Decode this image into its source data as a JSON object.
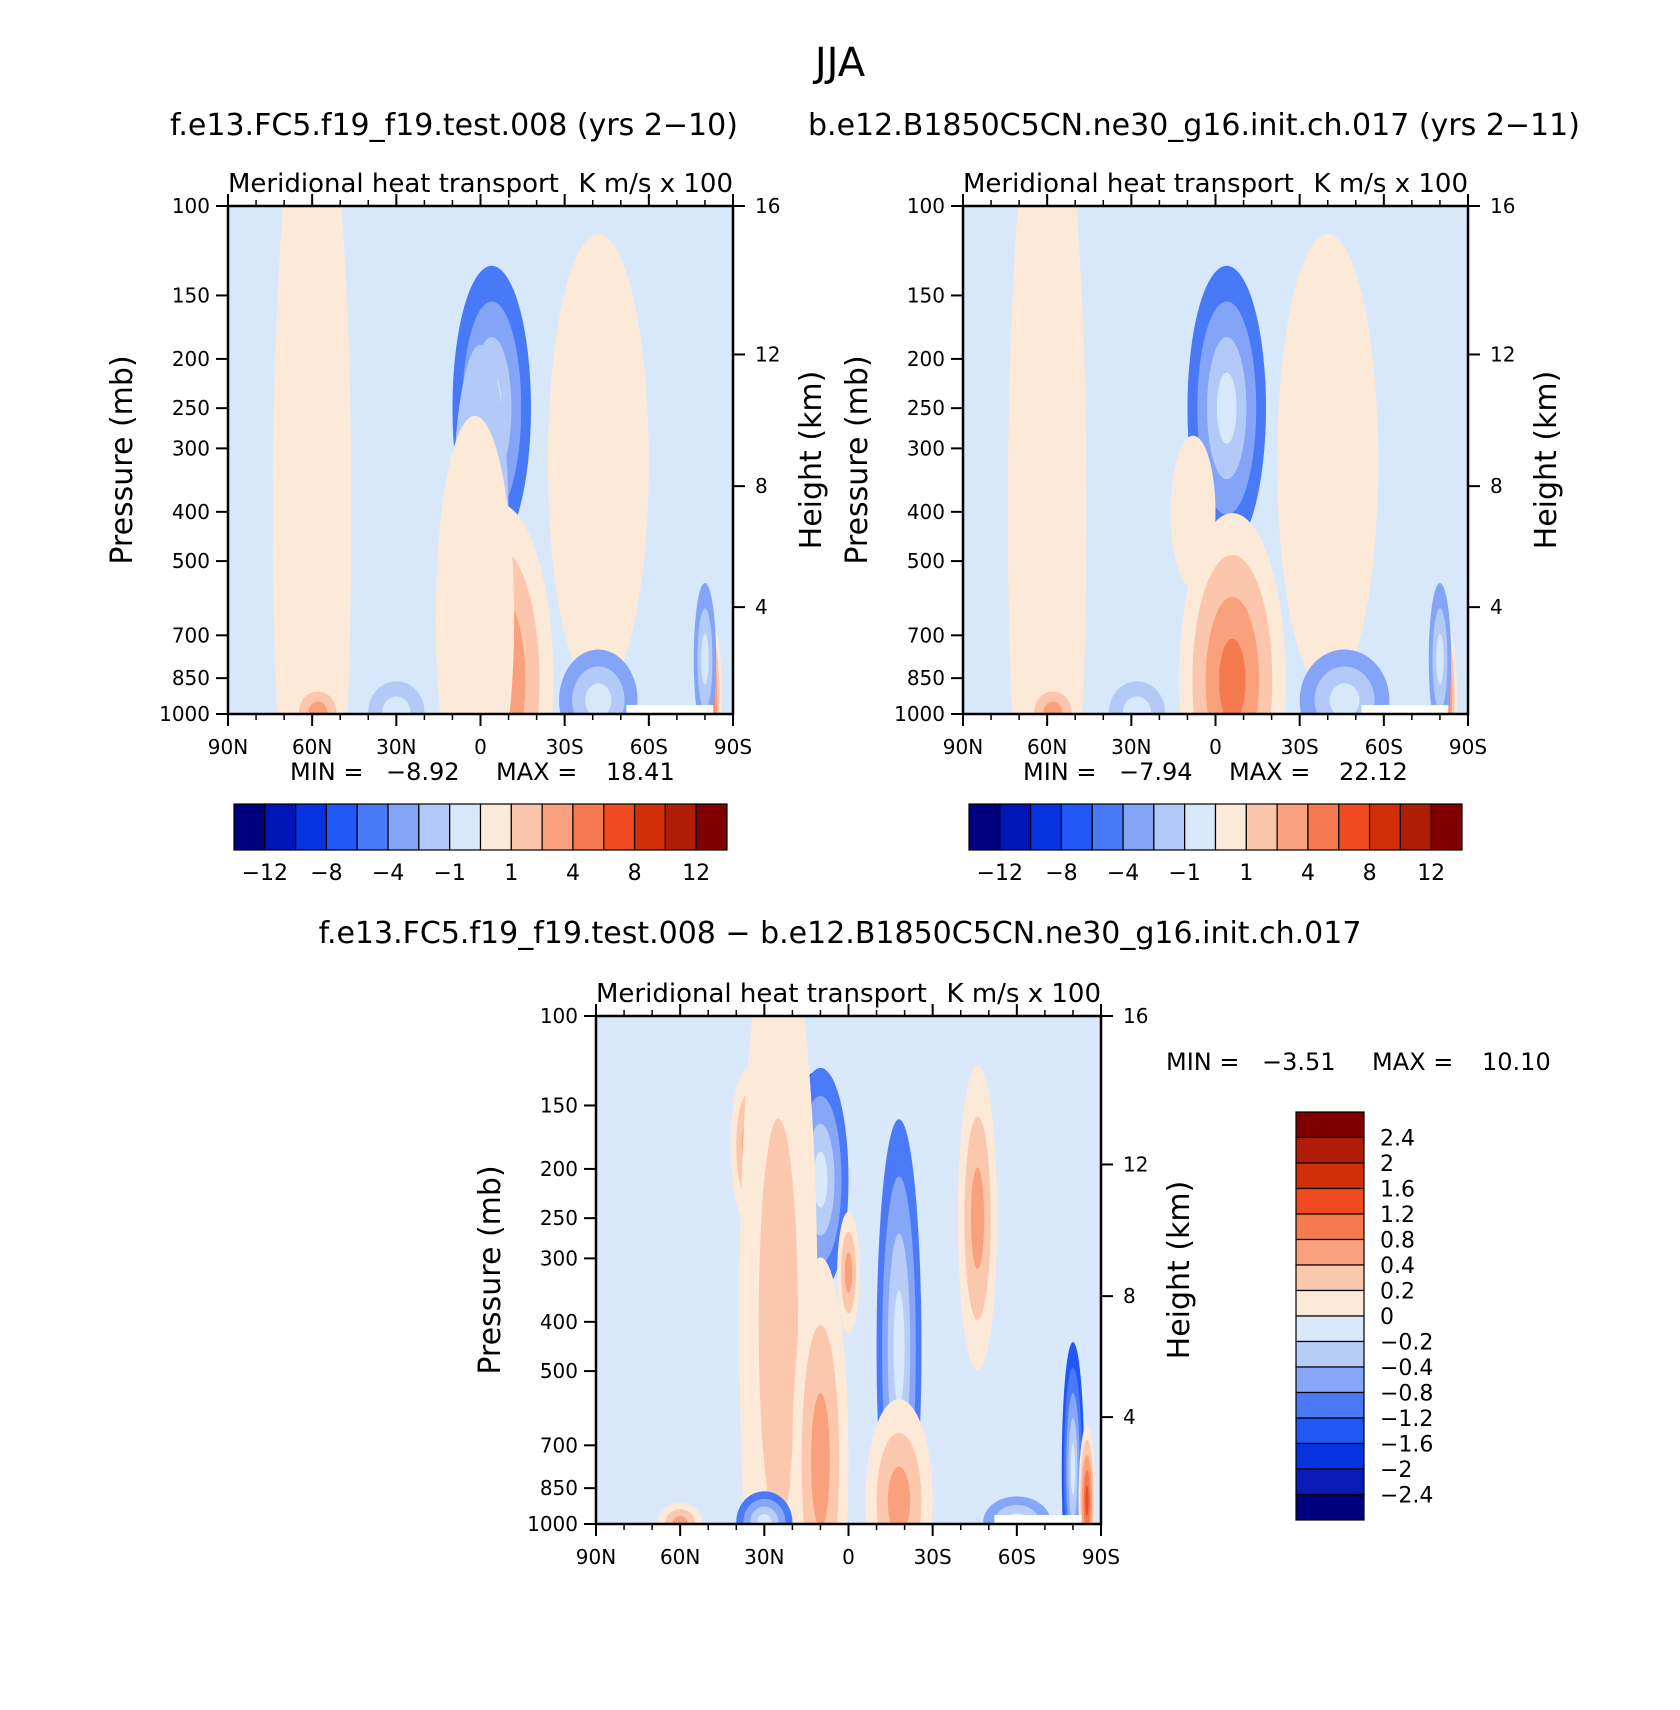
{
  "main_title": "JJA",
  "left_title": "f.e13.FC5.f19_f19.test.008 (yrs 2−10)",
  "right_title": "b.e12.B1850C5CN.ne30_g16.init.ch.017 (yrs 2−11)",
  "diff_title": "f.e13.FC5.f19_f19.test.008 − b.e12.B1850C5CN.ne30_g16.init.ch.017",
  "shared_colors": {
    "main_scale": [
      "#00007f",
      "#0015b8",
      "#0533e0",
      "#2157f7",
      "#4879f7",
      "#84a5f7",
      "#b3caf8",
      "#d8e8fb",
      "#fde9d7",
      "#fbc6ac",
      "#f9a07c",
      "#f67a50",
      "#f04a20",
      "#d22e07",
      "#b01d07",
      "#800000"
    ],
    "diff_scale": [
      "#00007f",
      "#0a1bb5",
      "#0533e0",
      "#2157f7",
      "#4a7af7",
      "#86a7f7",
      "#b7cdf8",
      "#d9e8fb",
      "#fde9d7",
      "#fbc7ad",
      "#f9a07c",
      "#f67a50",
      "#f04a20",
      "#d22e07",
      "#b01d07",
      "#800000"
    ]
  },
  "chart_data": [
    {
      "type": "heatmap",
      "name": "panel-control-fc5",
      "title": "Meridional heat transport",
      "units_label": "K m/s x 100",
      "ylabel": "Pressure (mb)",
      "ylabel_right": "Height (km)",
      "xticks": [
        "90N",
        "60N",
        "30N",
        "0",
        "30S",
        "60S",
        "90S"
      ],
      "xlim": [
        90,
        -90
      ],
      "yticks": [
        100,
        150,
        200,
        250,
        300,
        400,
        500,
        700,
        850,
        1000
      ],
      "ylim": [
        1000,
        100
      ],
      "y_scale": "log",
      "yticks_right": [
        16,
        12,
        8,
        4
      ],
      "min_label": "MIN =",
      "min_value": "−8.92",
      "max_label": "MAX =",
      "max_value": "18.41",
      "colorbar_labels": [
        "−12",
        "−8",
        "−4",
        "−1",
        "1",
        "4",
        "8",
        "12"
      ],
      "features": [
        {
          "lat": -2,
          "p": 200,
          "value": -12,
          "rx": 8,
          "rz": 0.12
        },
        {
          "lat": -4,
          "p": 250,
          "value": -5,
          "rx": 14,
          "rz": 0.28
        },
        {
          "lat": 0,
          "p": 420,
          "value": -2,
          "rx": 10,
          "rz": 0.35
        },
        {
          "lat": -40,
          "p": 230,
          "value": 2,
          "rx": 13,
          "rz": 0.22
        },
        {
          "lat": -42,
          "p": 320,
          "value": 0.8,
          "rx": 18,
          "rz": 0.45
        },
        {
          "lat": 60,
          "p": 400,
          "value": 0.6,
          "rx": 14,
          "rz": 0.9
        },
        {
          "lat": -8,
          "p": 980,
          "value": 16,
          "rx": 9,
          "rz": 0.08
        },
        {
          "lat": -8,
          "p": 930,
          "value": 11,
          "rx": 14,
          "rz": 0.16
        },
        {
          "lat": -6,
          "p": 860,
          "value": 5,
          "rx": 20,
          "rz": 0.35
        },
        {
          "lat": 2,
          "p": 650,
          "value": 1,
          "rx": 14,
          "rz": 0.4
        },
        {
          "lat": 58,
          "p": 990,
          "value": 3,
          "rx": 10,
          "rz": 0.06
        },
        {
          "lat": 30,
          "p": 990,
          "value": -2,
          "rx": 10,
          "rz": 0.06
        },
        {
          "lat": -42,
          "p": 940,
          "value": -4,
          "rx": 14,
          "rz": 0.1
        },
        {
          "lat": -82,
          "p": 920,
          "value": 8,
          "rx": 4,
          "rz": 0.15
        },
        {
          "lat": -80,
          "p": 780,
          "value": -3,
          "rx": 4,
          "rz": 0.15
        }
      ]
    },
    {
      "type": "heatmap",
      "name": "panel-control-b1850",
      "title": "Meridional heat transport",
      "units_label": "K m/s x 100",
      "ylabel": "Pressure (mb)",
      "ylabel_right": "Height (km)",
      "xticks": [
        "90N",
        "60N",
        "30N",
        "0",
        "30S",
        "60S",
        "90S"
      ],
      "xlim": [
        90,
        -90
      ],
      "yticks": [
        100,
        150,
        200,
        250,
        300,
        400,
        500,
        700,
        850,
        1000
      ],
      "ylim": [
        1000,
        100
      ],
      "y_scale": "log",
      "yticks_right": [
        16,
        12,
        8,
        4
      ],
      "min_label": "MIN =",
      "min_value": "−7.94",
      "max_label": "MAX =",
      "max_value": "22.12",
      "colorbar_labels": [
        "−12",
        "−8",
        "−4",
        "−1",
        "1",
        "4",
        "8",
        "12"
      ],
      "features": [
        {
          "lat": -3,
          "p": 210,
          "value": -11,
          "rx": 8,
          "rz": 0.14
        },
        {
          "lat": -4,
          "p": 250,
          "value": -5,
          "rx": 14,
          "rz": 0.28
        },
        {
          "lat": -38,
          "p": 210,
          "value": 2,
          "rx": 10,
          "rz": 0.15
        },
        {
          "lat": -40,
          "p": 320,
          "value": 0.8,
          "rx": 18,
          "rz": 0.45
        },
        {
          "lat": 60,
          "p": 400,
          "value": 0.6,
          "rx": 14,
          "rz": 0.9
        },
        {
          "lat": 8,
          "p": 400,
          "value": 0.5,
          "rx": 8,
          "rz": 0.15
        },
        {
          "lat": -8,
          "p": 985,
          "value": 18,
          "rx": 8,
          "rz": 0.07
        },
        {
          "lat": -8,
          "p": 930,
          "value": 11,
          "rx": 13,
          "rz": 0.16
        },
        {
          "lat": -6,
          "p": 860,
          "value": 5,
          "rx": 19,
          "rz": 0.33
        },
        {
          "lat": 58,
          "p": 990,
          "value": 3,
          "rx": 10,
          "rz": 0.06
        },
        {
          "lat": 28,
          "p": 990,
          "value": -2,
          "rx": 10,
          "rz": 0.06
        },
        {
          "lat": -46,
          "p": 940,
          "value": -3,
          "rx": 16,
          "rz": 0.1
        },
        {
          "lat": -82,
          "p": 920,
          "value": 7,
          "rx": 4,
          "rz": 0.15
        },
        {
          "lat": -80,
          "p": 780,
          "value": -3,
          "rx": 4,
          "rz": 0.15
        }
      ]
    },
    {
      "type": "heatmap",
      "name": "panel-difference",
      "title": "Meridional heat transport",
      "units_label": "K m/s x 100",
      "ylabel": "Pressure (mb)",
      "ylabel_right": "Height (km)",
      "xticks": [
        "90N",
        "60N",
        "30N",
        "0",
        "30S",
        "60S",
        "90S"
      ],
      "xlim": [
        90,
        -90
      ],
      "yticks": [
        100,
        150,
        200,
        250,
        300,
        400,
        500,
        700,
        850,
        1000
      ],
      "ylim": [
        1000,
        100
      ],
      "y_scale": "log",
      "yticks_right": [
        16,
        12,
        8,
        4
      ],
      "min_label": "MIN =",
      "min_value": "−3.51",
      "max_label": "MAX =",
      "max_value": "10.10",
      "colorbar_labels": [
        "2.4",
        "2",
        "1.6",
        "1.2",
        "0.8",
        "0.4",
        "0.2",
        "0",
        "−0.2",
        "−0.4",
        "−0.8",
        "−1.2",
        "−1.6",
        "−2",
        "−2.4"
      ],
      "features": [
        {
          "lat": 12,
          "p": 170,
          "value": -2.2,
          "rx": 6,
          "rz": 0.12
        },
        {
          "lat": 10,
          "p": 210,
          "value": -1,
          "rx": 10,
          "rz": 0.22
        },
        {
          "lat": -18,
          "p": 450,
          "value": -0.9,
          "rx": 8,
          "rz": 0.45
        },
        {
          "lat": 36,
          "p": 180,
          "value": 0.6,
          "rx": 6,
          "rz": 0.15
        },
        {
          "lat": -46,
          "p": 250,
          "value": 0.6,
          "rx": 7,
          "rz": 0.3
        },
        {
          "lat": 0,
          "p": 320,
          "value": 0.5,
          "rx": 4,
          "rz": 0.12
        },
        {
          "lat": 25,
          "p": 400,
          "value": 0.25,
          "rx": 14,
          "rz": 0.8
        },
        {
          "lat": 15,
          "p": 920,
          "value": 1.4,
          "rx": 6,
          "rz": 0.2
        },
        {
          "lat": 10,
          "p": 750,
          "value": 0.6,
          "rx": 10,
          "rz": 0.4
        },
        {
          "lat": -20,
          "p": 960,
          "value": 1.8,
          "rx": 8,
          "rz": 0.1
        },
        {
          "lat": -18,
          "p": 900,
          "value": 0.8,
          "rx": 12,
          "rz": 0.2
        },
        {
          "lat": 30,
          "p": 990,
          "value": -0.9,
          "rx": 10,
          "rz": 0.06
        },
        {
          "lat": 60,
          "p": 995,
          "value": 0.6,
          "rx": 8,
          "rz": 0.04
        },
        {
          "lat": -60,
          "p": 990,
          "value": -0.8,
          "rx": 12,
          "rz": 0.05
        },
        {
          "lat": -80,
          "p": 780,
          "value": -1.4,
          "rx": 4,
          "rz": 0.25
        },
        {
          "lat": -85,
          "p": 900,
          "value": 1.5,
          "rx": 3,
          "rz": 0.15
        }
      ]
    }
  ]
}
